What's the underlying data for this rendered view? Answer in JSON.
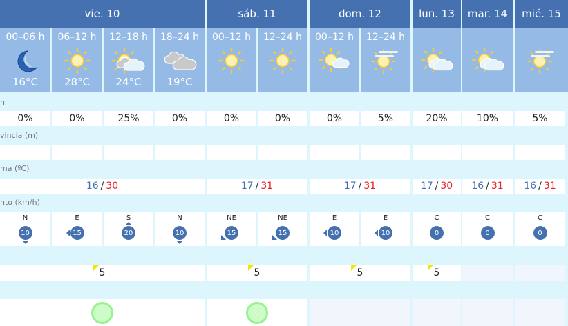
{
  "days": [
    {
      "label": "vie. 10"
    },
    {
      "label": "sáb. 11"
    },
    {
      "label": "dom. 12"
    },
    {
      "label": "lun. 13"
    },
    {
      "label": "mar. 14"
    },
    {
      "label": "mié. 15"
    }
  ],
  "periods": [
    {
      "period": "00–06 h",
      "icon": "moon-icon",
      "temp": "16°C"
    },
    {
      "period": "06–12 h",
      "icon": "sun-icon",
      "temp": "28°C"
    },
    {
      "period": "12–18 h",
      "icon": "sun-clouds-icon",
      "temp": "24°C"
    },
    {
      "period": "18–24 h",
      "icon": "overcast-clouds-icon",
      "temp": "19°C"
    },
    {
      "period": "00–12 h",
      "icon": "sun-icon"
    },
    {
      "period": "12–24 h",
      "icon": "sun-icon"
    },
    {
      "period": "00–12 h",
      "icon": "sun-small-cloud-icon"
    },
    {
      "period": "12–24 h",
      "icon": "sun-haze-icon"
    },
    {
      "icon": "sun-clouds-icon"
    },
    {
      "icon": "sun-clouds-icon"
    },
    {
      "icon": "sun-haze-icon"
    }
  ],
  "labels": {
    "precip": "n",
    "snow": "vincia (m)",
    "temp": "ma (ºC)",
    "wind": "nto (km/h)"
  },
  "precip": [
    "0%",
    "0%",
    "25%",
    "0%",
    "0%",
    "0%",
    "0%",
    "5%",
    "20%",
    "10%",
    "5%"
  ],
  "temps": [
    {
      "min": "16",
      "max": "30"
    },
    {
      "min": "17",
      "max": "31"
    },
    {
      "min": "17",
      "max": "31"
    },
    {
      "min": "17",
      "max": "30"
    },
    {
      "min": "16",
      "max": "31"
    },
    {
      "min": "16",
      "max": "31"
    }
  ],
  "temp_sep": "/",
  "wind": [
    {
      "dir": "N",
      "speed": "10"
    },
    {
      "dir": "E",
      "speed": "15"
    },
    {
      "dir": "S",
      "speed": "20"
    },
    {
      "dir": "N",
      "speed": "10"
    },
    {
      "dir": "NE",
      "speed": "15"
    },
    {
      "dir": "NE",
      "speed": "15"
    },
    {
      "dir": "E",
      "speed": "10"
    },
    {
      "dir": "E",
      "speed": "10"
    },
    {
      "dir": "C",
      "speed": "0"
    },
    {
      "dir": "C",
      "speed": "0"
    },
    {
      "dir": "C",
      "speed": "0"
    }
  ],
  "uv": [
    "5",
    "5",
    "5",
    "5"
  ],
  "colors": {
    "header": "#4571b0",
    "subheader": "#95bae6",
    "background": "#ddf6fe",
    "min": "#4571b0",
    "max": "#e8202a",
    "uv_low": "#f5e800",
    "quality_good": "#98f28f"
  }
}
